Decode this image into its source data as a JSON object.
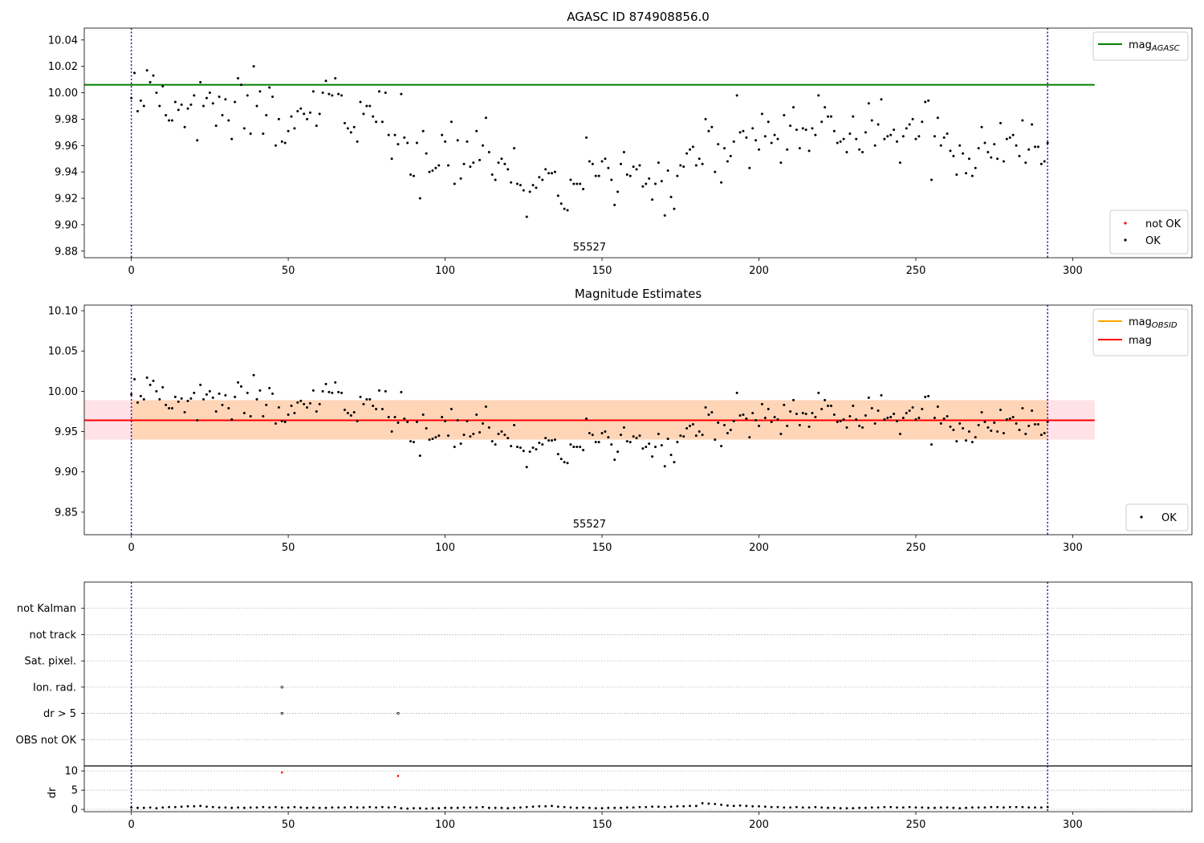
{
  "chart_data": [
    {
      "type": "scatter",
      "title": "AGASC ID 874908856.0",
      "annotation": "55527",
      "xlim": [
        -15,
        338
      ],
      "ylim": [
        9.875,
        10.049
      ],
      "xticks": [
        0,
        50,
        100,
        150,
        200,
        250,
        300
      ],
      "yticks": [
        9.88,
        9.9,
        9.92,
        9.94,
        9.96,
        9.98,
        10.0,
        10.02,
        10.04
      ],
      "vlines": [
        0,
        292
      ],
      "hlines": [
        {
          "name": "mag_AGASC",
          "value": 10.006,
          "xmin": -15,
          "xmax": 307,
          "color": "#008000"
        }
      ],
      "legend_lines": {
        "location": "upper right",
        "entries": [
          {
            "label": "mag",
            "sub": "AGASC",
            "color": "#008000"
          }
        ]
      },
      "legend_points": {
        "location": "lower right",
        "entries": [
          {
            "label": "not OK",
            "color": "#ff0000"
          },
          {
            "label": "OK",
            "color": "#000000"
          }
        ]
      },
      "series": [
        {
          "name": "OK",
          "color": "#000000",
          "from": "magnitudes"
        }
      ]
    },
    {
      "type": "scatter",
      "title": "Magnitude Estimates",
      "annotation": "55527",
      "xlim": [
        -15,
        338
      ],
      "ylim": [
        9.822,
        10.107
      ],
      "xticks": [
        0,
        50,
        100,
        150,
        200,
        250,
        300
      ],
      "yticks": [
        9.85,
        9.9,
        9.95,
        10.0,
        10.05,
        10.1
      ],
      "vlines": [
        0,
        292
      ],
      "bands": [
        {
          "ymin": 9.94,
          "ymax": 9.989,
          "xmin": -15,
          "xmax": 307,
          "color": "#ff8ca0",
          "opacity": 0.25
        },
        {
          "ymin": 9.94,
          "ymax": 9.989,
          "xmin": 0,
          "xmax": 292,
          "color": "#ffa500",
          "opacity": 0.2
        }
      ],
      "hlines": [
        {
          "name": "mag_OBSID",
          "value": 9.964,
          "xmin": 0,
          "xmax": 292,
          "color": "#ffa500"
        },
        {
          "name": "mag",
          "value": 9.964,
          "xmin": -15,
          "xmax": 307,
          "color": "#ff0000"
        }
      ],
      "legend_lines": {
        "location": "upper right",
        "entries": [
          {
            "label": "mag",
            "sub": "OBSID",
            "color": "#ffa500"
          },
          {
            "label": "mag",
            "sub": "",
            "color": "#ff0000"
          }
        ]
      },
      "legend_points": {
        "location": "lower right",
        "entries": [
          {
            "label": "OK",
            "color": "#000000"
          }
        ]
      },
      "series": [
        {
          "name": "OK",
          "color": "#000000",
          "from": "magnitudes"
        }
      ]
    },
    {
      "type": "scatter",
      "title": "",
      "xlim": [
        -15,
        338
      ],
      "ylim": [
        0,
        7
      ],
      "categories": [
        "not Kalman",
        "not track",
        "Sat. pixel.",
        "Ion. rad.",
        "dr > 5",
        "OBS not OK"
      ],
      "vlines": [
        0,
        292
      ],
      "flags": [
        {
          "x": 48,
          "category": "Ion. rad."
        },
        {
          "x": 48,
          "category": "dr > 5"
        },
        {
          "x": 85,
          "category": "dr > 5"
        }
      ]
    },
    {
      "type": "scatter",
      "title": "",
      "ylabel": "dr",
      "xlim": [
        -15,
        338
      ],
      "ylim": [
        -0.6,
        11.3
      ],
      "xticks": [
        0,
        50,
        100,
        150,
        200,
        250,
        300
      ],
      "yticks": [
        0,
        5,
        10
      ],
      "vlines": [
        0,
        292
      ],
      "series": [
        {
          "name": "OK",
          "color": "#000000",
          "from": "dr"
        },
        {
          "name": "not OK",
          "color": "#ff0000",
          "points": [
            [
              48,
              9.6
            ],
            [
              85,
              8.7
            ]
          ]
        }
      ]
    }
  ],
  "magnitudes": [
    [
      0,
      9.996
    ],
    [
      1,
      10.015
    ],
    [
      2,
      9.986
    ],
    [
      3,
      9.994
    ],
    [
      4,
      9.99
    ],
    [
      5,
      10.017
    ],
    [
      6,
      10.008
    ],
    [
      7,
      10.013
    ],
    [
      8,
      10.0
    ],
    [
      9,
      9.99
    ],
    [
      10,
      10.005
    ],
    [
      11,
      9.983
    ],
    [
      12,
      9.979
    ],
    [
      13,
      9.979
    ],
    [
      14,
      9.993
    ],
    [
      15,
      9.987
    ],
    [
      16,
      9.991
    ],
    [
      17,
      9.974
    ],
    [
      18,
      9.988
    ],
    [
      19,
      9.991
    ],
    [
      20,
      9.998
    ],
    [
      21,
      9.964
    ],
    [
      22,
      10.008
    ],
    [
      23,
      9.99
    ],
    [
      24,
      9.996
    ],
    [
      25,
      10.0
    ],
    [
      26,
      9.992
    ],
    [
      27,
      9.975
    ],
    [
      28,
      9.997
    ],
    [
      29,
      9.983
    ],
    [
      30,
      9.995
    ],
    [
      31,
      9.979
    ],
    [
      32,
      9.965
    ],
    [
      33,
      9.993
    ],
    [
      34,
      10.011
    ],
    [
      35,
      10.006
    ],
    [
      36,
      9.973
    ],
    [
      37,
      9.998
    ],
    [
      38,
      9.969
    ],
    [
      39,
      10.02
    ],
    [
      40,
      9.99
    ],
    [
      41,
      10.001
    ],
    [
      42,
      9.969
    ],
    [
      43,
      9.983
    ],
    [
      44,
      10.004
    ],
    [
      45,
      9.997
    ],
    [
      46,
      9.96
    ],
    [
      47,
      9.98
    ],
    [
      48,
      9.963
    ],
    [
      49,
      9.962
    ],
    [
      50,
      9.971
    ],
    [
      51,
      9.982
    ],
    [
      52,
      9.973
    ],
    [
      53,
      9.986
    ],
    [
      54,
      9.988
    ],
    [
      55,
      9.984
    ],
    [
      56,
      9.98
    ],
    [
      57,
      9.985
    ],
    [
      58,
      10.001
    ],
    [
      59,
      9.975
    ],
    [
      60,
      9.984
    ],
    [
      61,
      10.0
    ],
    [
      62,
      10.009
    ],
    [
      63,
      9.999
    ],
    [
      64,
      9.998
    ],
    [
      65,
      10.011
    ],
    [
      66,
      9.999
    ],
    [
      67,
      9.998
    ],
    [
      68,
      9.977
    ],
    [
      69,
      9.973
    ],
    [
      70,
      9.97
    ],
    [
      71,
      9.974
    ],
    [
      72,
      9.963
    ],
    [
      73,
      9.993
    ],
    [
      74,
      9.984
    ],
    [
      75,
      9.99
    ],
    [
      76,
      9.99
    ],
    [
      77,
      9.982
    ],
    [
      78,
      9.978
    ],
    [
      79,
      10.001
    ],
    [
      80,
      9.978
    ],
    [
      81,
      10.0
    ],
    [
      82,
      9.968
    ],
    [
      83,
      9.95
    ],
    [
      84,
      9.968
    ],
    [
      85,
      9.961
    ],
    [
      86,
      9.999
    ],
    [
      87,
      9.966
    ],
    [
      88,
      9.962
    ],
    [
      89,
      9.938
    ],
    [
      90,
      9.937
    ],
    [
      91,
      9.962
    ],
    [
      92,
      9.92
    ],
    [
      93,
      9.971
    ],
    [
      94,
      9.954
    ],
    [
      95,
      9.94
    ],
    [
      96,
      9.941
    ],
    [
      97,
      9.943
    ],
    [
      98,
      9.945
    ],
    [
      99,
      9.968
    ],
    [
      100,
      9.963
    ],
    [
      101,
      9.945
    ],
    [
      102,
      9.978
    ],
    [
      103,
      9.931
    ],
    [
      104,
      9.964
    ],
    [
      105,
      9.935
    ],
    [
      106,
      9.946
    ],
    [
      107,
      9.963
    ],
    [
      108,
      9.944
    ],
    [
      109,
      9.947
    ],
    [
      110,
      9.971
    ],
    [
      111,
      9.949
    ],
    [
      112,
      9.96
    ],
    [
      113,
      9.981
    ],
    [
      114,
      9.955
    ],
    [
      115,
      9.938
    ],
    [
      116,
      9.934
    ],
    [
      117,
      9.947
    ],
    [
      118,
      9.95
    ],
    [
      119,
      9.946
    ],
    [
      120,
      9.942
    ],
    [
      121,
      9.932
    ],
    [
      122,
      9.958
    ],
    [
      123,
      9.931
    ],
    [
      124,
      9.93
    ],
    [
      125,
      9.926
    ],
    [
      126,
      9.906
    ],
    [
      127,
      9.925
    ],
    [
      128,
      9.93
    ],
    [
      129,
      9.928
    ],
    [
      130,
      9.936
    ],
    [
      131,
      9.934
    ],
    [
      132,
      9.942
    ],
    [
      133,
      9.939
    ],
    [
      134,
      9.939
    ],
    [
      135,
      9.94
    ],
    [
      136,
      9.922
    ],
    [
      137,
      9.916
    ],
    [
      138,
      9.912
    ],
    [
      139,
      9.911
    ],
    [
      140,
      9.934
    ],
    [
      141,
      9.931
    ],
    [
      142,
      9.931
    ],
    [
      143,
      9.931
    ],
    [
      144,
      9.927
    ],
    [
      145,
      9.966
    ],
    [
      146,
      9.948
    ],
    [
      147,
      9.946
    ],
    [
      148,
      9.937
    ],
    [
      149,
      9.937
    ],
    [
      150,
      9.948
    ],
    [
      151,
      9.95
    ],
    [
      152,
      9.943
    ],
    [
      153,
      9.934
    ],
    [
      154,
      9.915
    ],
    [
      155,
      9.925
    ],
    [
      156,
      9.946
    ],
    [
      157,
      9.955
    ],
    [
      158,
      9.938
    ],
    [
      159,
      9.937
    ],
    [
      160,
      9.944
    ],
    [
      161,
      9.942
    ],
    [
      162,
      9.945
    ],
    [
      163,
      9.929
    ],
    [
      164,
      9.931
    ],
    [
      165,
      9.935
    ],
    [
      166,
      9.919
    ],
    [
      167,
      9.931
    ],
    [
      168,
      9.947
    ],
    [
      169,
      9.933
    ],
    [
      170,
      9.907
    ],
    [
      171,
      9.941
    ],
    [
      172,
      9.921
    ],
    [
      173,
      9.912
    ],
    [
      174,
      9.937
    ],
    [
      175,
      9.945
    ],
    [
      176,
      9.944
    ],
    [
      177,
      9.954
    ],
    [
      178,
      9.957
    ],
    [
      179,
      9.959
    ],
    [
      180,
      9.945
    ],
    [
      181,
      9.95
    ],
    [
      182,
      9.946
    ],
    [
      183,
      9.98
    ],
    [
      184,
      9.971
    ],
    [
      185,
      9.974
    ],
    [
      186,
      9.94
    ],
    [
      187,
      9.961
    ],
    [
      188,
      9.932
    ],
    [
      189,
      9.958
    ],
    [
      190,
      9.948
    ],
    [
      191,
      9.952
    ],
    [
      192,
      9.963
    ],
    [
      193,
      9.998
    ],
    [
      194,
      9.97
    ],
    [
      195,
      9.971
    ],
    [
      196,
      9.966
    ],
    [
      197,
      9.943
    ],
    [
      198,
      9.973
    ],
    [
      199,
      9.964
    ],
    [
      200,
      9.957
    ],
    [
      201,
      9.984
    ],
    [
      202,
      9.967
    ],
    [
      203,
      9.978
    ],
    [
      204,
      9.962
    ],
    [
      205,
      9.968
    ],
    [
      206,
      9.965
    ],
    [
      207,
      9.947
    ],
    [
      208,
      9.983
    ],
    [
      209,
      9.957
    ],
    [
      210,
      9.975
    ],
    [
      211,
      9.989
    ],
    [
      212,
      9.972
    ],
    [
      213,
      9.958
    ],
    [
      214,
      9.973
    ],
    [
      215,
      9.972
    ],
    [
      216,
      9.956
    ],
    [
      217,
      9.973
    ],
    [
      218,
      9.968
    ],
    [
      219,
      9.998
    ],
    [
      220,
      9.978
    ],
    [
      221,
      9.989
    ],
    [
      222,
      9.982
    ],
    [
      223,
      9.982
    ],
    [
      224,
      9.971
    ],
    [
      225,
      9.962
    ],
    [
      226,
      9.963
    ],
    [
      227,
      9.965
    ],
    [
      228,
      9.955
    ],
    [
      229,
      9.969
    ],
    [
      230,
      9.982
    ],
    [
      231,
      9.965
    ],
    [
      232,
      9.957
    ],
    [
      233,
      9.955
    ],
    [
      234,
      9.97
    ],
    [
      235,
      9.992
    ],
    [
      236,
      9.979
    ],
    [
      237,
      9.96
    ],
    [
      238,
      9.976
    ],
    [
      239,
      9.995
    ],
    [
      240,
      9.965
    ],
    [
      241,
      9.967
    ],
    [
      242,
      9.968
    ],
    [
      243,
      9.972
    ],
    [
      244,
      9.963
    ],
    [
      245,
      9.947
    ],
    [
      246,
      9.967
    ],
    [
      247,
      9.973
    ],
    [
      248,
      9.976
    ],
    [
      249,
      9.98
    ],
    [
      250,
      9.965
    ],
    [
      251,
      9.967
    ],
    [
      252,
      9.978
    ],
    [
      253,
      9.993
    ],
    [
      254,
      9.994
    ],
    [
      255,
      9.934
    ],
    [
      256,
      9.967
    ],
    [
      257,
      9.981
    ],
    [
      258,
      9.96
    ],
    [
      259,
      9.966
    ],
    [
      260,
      9.969
    ],
    [
      261,
      9.956
    ],
    [
      262,
      9.952
    ],
    [
      263,
      9.938
    ],
    [
      264,
      9.96
    ],
    [
      265,
      9.954
    ],
    [
      266,
      9.939
    ],
    [
      267,
      9.95
    ],
    [
      268,
      9.937
    ],
    [
      269,
      9.943
    ],
    [
      270,
      9.958
    ],
    [
      271,
      9.974
    ],
    [
      272,
      9.962
    ],
    [
      273,
      9.955
    ],
    [
      274,
      9.951
    ],
    [
      275,
      9.961
    ],
    [
      276,
      9.95
    ],
    [
      277,
      9.977
    ],
    [
      278,
      9.948
    ],
    [
      279,
      9.965
    ],
    [
      280,
      9.966
    ],
    [
      281,
      9.968
    ],
    [
      282,
      9.96
    ],
    [
      283,
      9.952
    ],
    [
      284,
      9.979
    ],
    [
      285,
      9.947
    ],
    [
      286,
      9.957
    ],
    [
      287,
      9.976
    ],
    [
      288,
      9.959
    ],
    [
      289,
      9.959
    ],
    [
      290,
      9.946
    ],
    [
      291,
      9.948
    ],
    [
      292,
      9.962
    ]
  ],
  "dr": [
    [
      0,
      0.5
    ],
    [
      2,
      0.4
    ],
    [
      4,
      0.4
    ],
    [
      6,
      0.5
    ],
    [
      8,
      0.3
    ],
    [
      10,
      0.5
    ],
    [
      12,
      0.6
    ],
    [
      14,
      0.6
    ],
    [
      16,
      0.7
    ],
    [
      18,
      0.8
    ],
    [
      20,
      0.8
    ],
    [
      22,
      0.9
    ],
    [
      24,
      0.7
    ],
    [
      26,
      0.6
    ],
    [
      28,
      0.5
    ],
    [
      30,
      0.5
    ],
    [
      32,
      0.4
    ],
    [
      34,
      0.5
    ],
    [
      36,
      0.4
    ],
    [
      38,
      0.5
    ],
    [
      40,
      0.5
    ],
    [
      42,
      0.6
    ],
    [
      44,
      0.5
    ],
    [
      46,
      0.6
    ],
    [
      48,
      0.5
    ],
    [
      50,
      0.5
    ],
    [
      52,
      0.6
    ],
    [
      54,
      0.5
    ],
    [
      56,
      0.4
    ],
    [
      58,
      0.5
    ],
    [
      60,
      0.4
    ],
    [
      62,
      0.4
    ],
    [
      64,
      0.5
    ],
    [
      66,
      0.5
    ],
    [
      68,
      0.5
    ],
    [
      70,
      0.6
    ],
    [
      72,
      0.5
    ],
    [
      74,
      0.5
    ],
    [
      76,
      0.6
    ],
    [
      78,
      0.5
    ],
    [
      80,
      0.6
    ],
    [
      82,
      0.5
    ],
    [
      84,
      0.6
    ],
    [
      86,
      0.3
    ],
    [
      88,
      0.2
    ],
    [
      90,
      0.3
    ],
    [
      92,
      0.3
    ],
    [
      94,
      0.2
    ],
    [
      96,
      0.3
    ],
    [
      98,
      0.3
    ],
    [
      100,
      0.4
    ],
    [
      102,
      0.4
    ],
    [
      104,
      0.4
    ],
    [
      106,
      0.5
    ],
    [
      108,
      0.5
    ],
    [
      110,
      0.5
    ],
    [
      112,
      0.6
    ],
    [
      114,
      0.4
    ],
    [
      116,
      0.4
    ],
    [
      118,
      0.4
    ],
    [
      120,
      0.3
    ],
    [
      122,
      0.4
    ],
    [
      124,
      0.5
    ],
    [
      126,
      0.6
    ],
    [
      128,
      0.7
    ],
    [
      130,
      0.8
    ],
    [
      132,
      0.8
    ],
    [
      134,
      0.9
    ],
    [
      136,
      0.7
    ],
    [
      138,
      0.6
    ],
    [
      140,
      0.5
    ],
    [
      142,
      0.4
    ],
    [
      144,
      0.5
    ],
    [
      146,
      0.4
    ],
    [
      148,
      0.3
    ],
    [
      150,
      0.3
    ],
    [
      152,
      0.4
    ],
    [
      154,
      0.4
    ],
    [
      156,
      0.4
    ],
    [
      158,
      0.5
    ],
    [
      160,
      0.5
    ],
    [
      162,
      0.6
    ],
    [
      164,
      0.6
    ],
    [
      166,
      0.7
    ],
    [
      168,
      0.7
    ],
    [
      170,
      0.6
    ],
    [
      172,
      0.7
    ],
    [
      174,
      0.8
    ],
    [
      176,
      0.8
    ],
    [
      178,
      0.9
    ],
    [
      180,
      0.9
    ],
    [
      182,
      1.6
    ],
    [
      184,
      1.5
    ],
    [
      186,
      1.4
    ],
    [
      188,
      1.2
    ],
    [
      190,
      1.0
    ],
    [
      192,
      0.9
    ],
    [
      194,
      1.0
    ],
    [
      196,
      0.9
    ],
    [
      198,
      0.8
    ],
    [
      200,
      0.8
    ],
    [
      202,
      0.7
    ],
    [
      204,
      0.6
    ],
    [
      206,
      0.6
    ],
    [
      208,
      0.5
    ],
    [
      210,
      0.5
    ],
    [
      212,
      0.6
    ],
    [
      214,
      0.5
    ],
    [
      216,
      0.5
    ],
    [
      218,
      0.6
    ],
    [
      220,
      0.5
    ],
    [
      222,
      0.4
    ],
    [
      224,
      0.4
    ],
    [
      226,
      0.3
    ],
    [
      228,
      0.3
    ],
    [
      230,
      0.3
    ],
    [
      232,
      0.4
    ],
    [
      234,
      0.4
    ],
    [
      236,
      0.5
    ],
    [
      238,
      0.5
    ],
    [
      240,
      0.6
    ],
    [
      242,
      0.6
    ],
    [
      244,
      0.5
    ],
    [
      246,
      0.5
    ],
    [
      248,
      0.6
    ],
    [
      250,
      0.5
    ],
    [
      252,
      0.5
    ],
    [
      254,
      0.4
    ],
    [
      256,
      0.4
    ],
    [
      258,
      0.5
    ],
    [
      260,
      0.5
    ],
    [
      262,
      0.4
    ],
    [
      264,
      0.3
    ],
    [
      266,
      0.4
    ],
    [
      268,
      0.5
    ],
    [
      270,
      0.5
    ],
    [
      272,
      0.5
    ],
    [
      274,
      0.6
    ],
    [
      276,
      0.6
    ],
    [
      278,
      0.5
    ],
    [
      280,
      0.6
    ],
    [
      282,
      0.6
    ],
    [
      284,
      0.6
    ],
    [
      286,
      0.5
    ],
    [
      288,
      0.5
    ],
    [
      290,
      0.5
    ],
    [
      292,
      0.6
    ]
  ]
}
